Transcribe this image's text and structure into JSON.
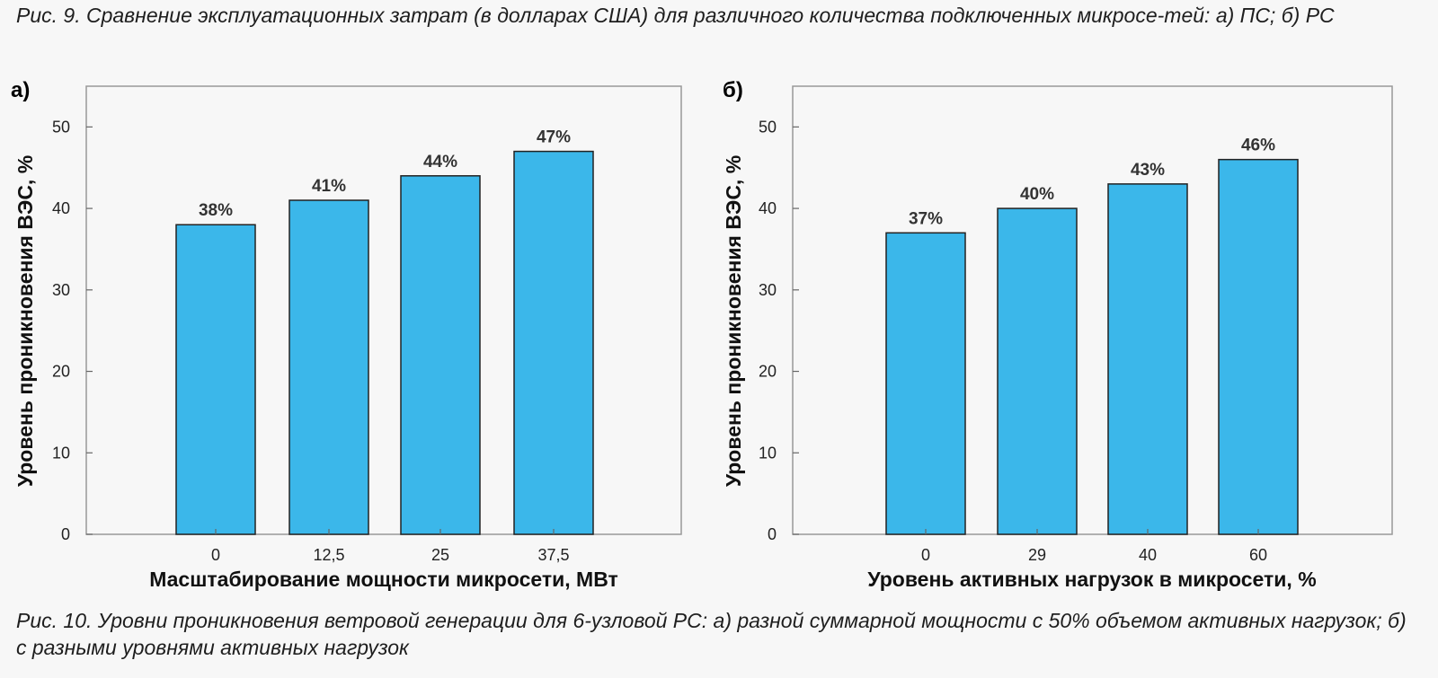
{
  "captions": {
    "top": "Рис. 9. Сравнение эксплуатационных затрат (в долларах США) для различного количества подключенных микросе-тей: а) ПС; б) РС",
    "bottom": "Рис. 10. Уровни проникновения ветровой генерации для 6-узловой РС: а) разной суммарной мощности с 50% объемом активных нагрузок; б) с разными уровнями активных нагрузок"
  },
  "colors": {
    "bar": "#3bb7ea",
    "bar_border": "#222222",
    "frame": "#999999",
    "background": "#f7f7f7"
  },
  "chart_data": [
    {
      "type": "bar",
      "panel": "а)",
      "categories": [
        "0",
        "12,5",
        "25",
        "37,5"
      ],
      "values": [
        38,
        41,
        44,
        47
      ],
      "data_labels": [
        "38%",
        "41%",
        "44%",
        "47%"
      ],
      "xlabel": "Масштабирование мощности микросети, МВт",
      "ylabel": "Уровень проникновения ВЭС, %",
      "ylim": [
        0,
        55
      ],
      "yticks": [
        0,
        10,
        20,
        30,
        40,
        50
      ],
      "grid": false,
      "legend": "none"
    },
    {
      "type": "bar",
      "panel": "б)",
      "categories": [
        "0",
        "29",
        "40",
        "60"
      ],
      "values": [
        37,
        40,
        43,
        46
      ],
      "data_labels": [
        "37%",
        "40%",
        "43%",
        "46%"
      ],
      "xlabel": "Уровень активных нагрузок в микросети, %",
      "ylabel": "Уровень проникновения ВЭС, %",
      "ylim": [
        0,
        55
      ],
      "yticks": [
        0,
        10,
        20,
        30,
        40,
        50
      ],
      "grid": false,
      "legend": "none"
    }
  ]
}
